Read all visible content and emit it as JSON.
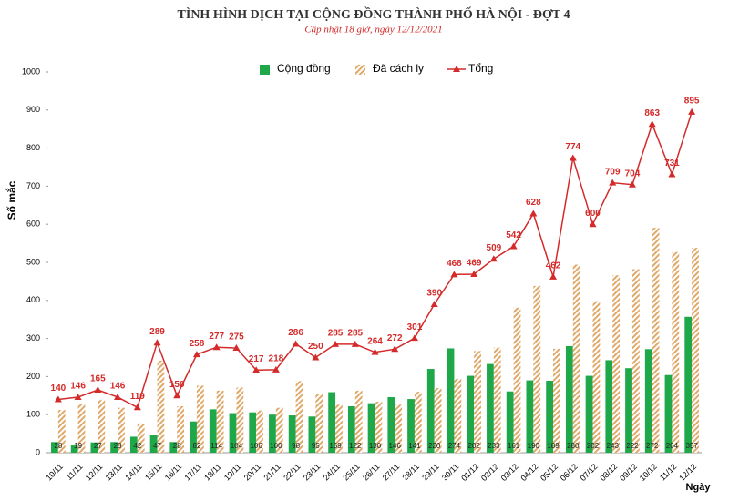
{
  "chart_data": {
    "type": "bar",
    "title": "TÌNH HÌNH DỊCH TẠI CỘNG ĐỒNG THÀNH PHỐ HÀ NỘI - ĐỢT 4",
    "subtitle": "Cập nhật 18 giờ, ngày 12/12/2021",
    "y_label": "Số mắc",
    "x_label": "Ngày",
    "categories": [
      "10/11",
      "11/11",
      "12/11",
      "13/11",
      "14/11",
      "15/11",
      "16/11",
      "17/11",
      "18/11",
      "19/11",
      "20/11",
      "21/11",
      "22/11",
      "23/11",
      "24/11",
      "25/11",
      "26/11",
      "27/11",
      "28/11",
      "29/11",
      "30/11",
      "01/12",
      "02/12",
      "03/12",
      "04/12",
      "05/12",
      "06/12",
      "07/12",
      "08/12",
      "09/12",
      "10/12",
      "11/12",
      "12/12"
    ],
    "series": [
      {
        "name": "Cộng đồng",
        "type": "bar",
        "color": "#1ea84a",
        "values": [
          28,
          19,
          27,
          28,
          42,
          47,
          28,
          82,
          114,
          104,
          106,
          100,
          98,
          95,
          159,
          122,
          130,
          146,
          141,
          220,
          274,
          202,
          233,
          161,
          190,
          189,
          280,
          202,
          243,
          222,
          272,
          204,
          357
        ]
      },
      {
        "name": "Đã cách ly",
        "type": "hatched-bar",
        "color": "#e0a96a",
        "values": [
          112,
          127,
          138,
          118,
          77,
          242,
          122,
          176,
          163,
          171,
          111,
          118,
          188,
          155,
          126,
          163,
          134,
          126,
          160,
          170,
          194,
          267,
          276,
          381,
          438,
          273,
          494,
          398,
          466,
          482,
          591,
          527,
          538
        ]
      },
      {
        "name": "Tổng",
        "type": "line",
        "color": "#d42a2a",
        "values": [
          140,
          146,
          165,
          146,
          119,
          289,
          150,
          258,
          277,
          275,
          217,
          218,
          286,
          250,
          285,
          285,
          264,
          272,
          301,
          390,
          468,
          469,
          509,
          542,
          628,
          462,
          774,
          600,
          709,
          704,
          863,
          731,
          895
        ]
      }
    ],
    "ylim": [
      0,
      1000
    ],
    "yticks": [
      0,
      100,
      200,
      300,
      400,
      500,
      600,
      700,
      800,
      900,
      1000
    ]
  }
}
